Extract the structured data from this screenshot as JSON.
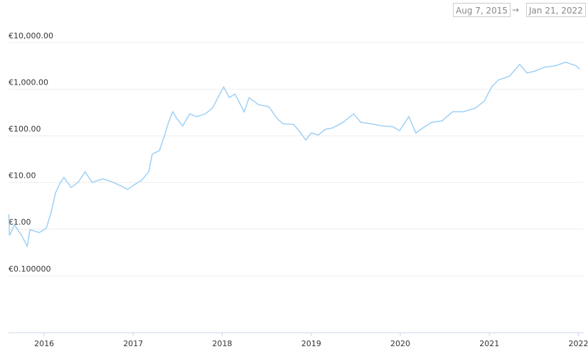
{
  "date_range": {
    "start": "Aug 7, 2015",
    "separator": "→",
    "end": "Jan 21, 2022"
  },
  "chart_data": {
    "type": "line",
    "log_scale": true,
    "grid": true,
    "color": "#9fd0f5",
    "xlim": [
      2015.6,
      2022.06
    ],
    "xticks": [
      2016,
      2017,
      2018,
      2019,
      2020,
      2021,
      2022
    ],
    "ylim": [
      0.006,
      20000
    ],
    "yticks": [
      {
        "value": 0.1,
        "label": "€0.100000"
      },
      {
        "value": 1,
        "label": "€1.00"
      },
      {
        "value": 10,
        "label": "€10.00"
      },
      {
        "value": 100,
        "label": "€100.00"
      },
      {
        "value": 1000,
        "label": "€1,000.00"
      },
      {
        "value": 10000,
        "label": "€10,000.00"
      }
    ],
    "x": [
      2015.603,
      2015.611,
      2015.667,
      2015.746,
      2015.81,
      2015.841,
      2015.944,
      2016.024,
      2016.079,
      2016.127,
      2016.183,
      2016.222,
      2016.302,
      2016.381,
      2016.46,
      2016.54,
      2016.659,
      2016.778,
      2016.897,
      2016.937,
      2017.016,
      2017.095,
      2017.175,
      2017.214,
      2017.294,
      2017.349,
      2017.397,
      2017.444,
      2017.492,
      2017.556,
      2017.635,
      2017.714,
      2017.81,
      2017.889,
      2017.952,
      2018.016,
      2018.079,
      2018.143,
      2018.246,
      2018.302,
      2018.405,
      2018.524,
      2018.619,
      2018.683,
      2018.802,
      2018.881,
      2018.937,
      2019.0,
      2019.079,
      2019.159,
      2019.238,
      2019.357,
      2019.476,
      2019.556,
      2019.675,
      2019.794,
      2019.913,
      2019.992,
      2020.095,
      2020.175,
      2020.23,
      2020.349,
      2020.468,
      2020.587,
      2020.706,
      2020.841,
      2020.944,
      2021.024,
      2021.103,
      2021.222,
      2021.341,
      2021.421,
      2021.5,
      2021.619,
      2021.738,
      2021.857,
      2021.976,
      2022.016
    ],
    "values": [
      2.08,
      0.73,
      1.23,
      0.73,
      0.43,
      0.97,
      0.84,
      1.04,
      2.31,
      5.93,
      10,
      12.8,
      7.8,
      10,
      16.9,
      10,
      11.9,
      10,
      7.8,
      7.05,
      9.0,
      11.1,
      16.9,
      40.4,
      48,
      96.6,
      194,
      327,
      231,
      163,
      295,
      257,
      295,
      390,
      658,
      1110,
      658,
      783,
      327,
      658,
      464,
      418,
      231,
      181,
      175,
      115,
      81,
      115,
      104,
      137,
      147,
      194,
      295,
      194,
      181,
      163,
      157,
      128,
      257,
      115,
      137,
      194,
      208,
      327,
      327,
      390,
      552,
      1110,
      1574,
      1875,
      3390,
      2230,
      2390,
      2950,
      3160,
      3765,
      3160,
      2655
    ]
  }
}
